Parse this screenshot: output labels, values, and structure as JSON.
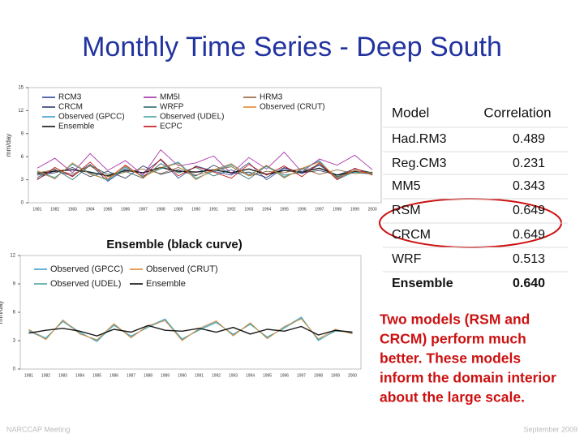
{
  "title": "Monthly Time Series - Deep South",
  "chart_data": [
    {
      "type": "line",
      "ylabel": "mm/day",
      "categories": [
        "1981",
        "1982",
        "1983",
        "1984",
        "1985",
        "1986",
        "1987",
        "1988",
        "1989",
        "1990",
        "1991",
        "1992",
        "1993",
        "1994",
        "1995",
        "1996",
        "1997",
        "1998",
        "1999",
        "2000"
      ],
      "ylim": [
        0,
        15
      ],
      "yticks": [
        0,
        3,
        6,
        9,
        12,
        15
      ],
      "series": [
        {
          "name": "RCM3",
          "color": "#1f3a93",
          "values": [
            3.1,
            4.2,
            3.5,
            5.0,
            2.8,
            4.4,
            3.9,
            5.6,
            3.2,
            4.8,
            4.1,
            3.6,
            5.2,
            3.0,
            4.5,
            3.8,
            4.9,
            3.3,
            4.0,
            3.7
          ]
        },
        {
          "name": "CRCM",
          "color": "#203060",
          "values": [
            3.6,
            3.9,
            4.6,
            3.4,
            4.1,
            3.2,
            4.8,
            3.7,
            4.3,
            3.5,
            4.9,
            3.8,
            4.0,
            3.3,
            4.6,
            3.9,
            4.2,
            3.6,
            4.4,
            3.9
          ]
        },
        {
          "name": "Observed (GPCC)",
          "color": "#3399cc",
          "values": [
            4.0,
            3.2,
            5.1,
            3.9,
            2.9,
            4.7,
            3.4,
            4.5,
            5.3,
            3.1,
            4.2,
            5.0,
            3.6,
            4.8,
            3.3,
            4.4,
            5.5,
            3.0,
            4.1,
            3.8
          ]
        },
        {
          "name": "Ensemble",
          "color": "#000000",
          "values": [
            3.8,
            4.1,
            4.3,
            4.0,
            3.5,
            4.2,
            3.9,
            4.6,
            4.1,
            4.0,
            4.3,
            3.9,
            4.4,
            3.7,
            4.2,
            4.0,
            4.5,
            3.6,
            4.1,
            3.9
          ]
        },
        {
          "name": "MM5I",
          "color": "#a020a0",
          "values": [
            4.5,
            5.8,
            3.9,
            6.4,
            4.2,
            5.5,
            3.6,
            6.9,
            4.8,
            5.2,
            6.1,
            3.8,
            5.9,
            4.4,
            6.6,
            4.0,
            5.7,
            4.9,
            6.2,
            4.3
          ]
        },
        {
          "name": "WRFP",
          "color": "#206060",
          "values": [
            3.3,
            4.4,
            3.0,
            4.9,
            3.7,
            4.1,
            3.2,
            5.1,
            3.9,
            4.6,
            3.5,
            4.3,
            3.1,
            4.8,
            3.6,
            4.0,
            5.0,
            3.4,
            4.2,
            3.8
          ]
        },
        {
          "name": "Observed (UDEL)",
          "color": "#40a0a0",
          "values": [
            4.1,
            3.3,
            5.0,
            3.8,
            3.0,
            4.6,
            3.5,
            4.4,
            5.2,
            3.2,
            4.1,
            4.9,
            3.7,
            4.7,
            3.4,
            4.3,
            5.4,
            3.1,
            4.0,
            3.9
          ]
        },
        {
          "name": "ECPC",
          "color": "#c00000",
          "values": [
            3.0,
            4.6,
            3.4,
            5.3,
            3.1,
            4.9,
            3.3,
            5.7,
            3.5,
            4.7,
            4.0,
            3.2,
            5.0,
            3.6,
            4.8,
            3.4,
            5.2,
            3.0,
            4.5,
            3.6
          ]
        },
        {
          "name": "HRM3",
          "color": "#8b5a2b",
          "values": [
            3.9,
            4.3,
            3.7,
            4.8,
            3.4,
            4.0,
            4.4,
            3.8,
            4.6,
            3.6,
            4.2,
            4.7,
            3.5,
            4.1,
            3.9,
            4.5,
            3.7,
            4.3,
            3.8,
            4.0
          ]
        },
        {
          "name": "Observed (CRUT)",
          "color": "#e08020",
          "values": [
            4.2,
            3.1,
            5.2,
            3.7,
            3.1,
            4.8,
            3.3,
            4.6,
            5.1,
            3.0,
            4.3,
            5.1,
            3.5,
            4.9,
            3.2,
            4.5,
            5.3,
            3.2,
            4.2,
            3.7
          ]
        }
      ]
    },
    {
      "type": "line",
      "title": "Ensemble (black curve)",
      "ylabel": "mm/day",
      "categories": [
        "1981",
        "1982",
        "1983",
        "1984",
        "1985",
        "1986",
        "1987",
        "1988",
        "1989",
        "1990",
        "1991",
        "1992",
        "1993",
        "1994",
        "1995",
        "1996",
        "1997",
        "1998",
        "1999",
        "2000"
      ],
      "ylim": [
        0,
        12
      ],
      "yticks": [
        0,
        3,
        6,
        9,
        12
      ],
      "series": [
        {
          "name": "Observed (GPCC)",
          "color": "#3399cc",
          "values": [
            4.0,
            3.2,
            5.1,
            3.9,
            2.9,
            4.7,
            3.4,
            4.5,
            5.3,
            3.1,
            4.2,
            5.0,
            3.6,
            4.8,
            3.3,
            4.4,
            5.5,
            3.0,
            4.1,
            3.8
          ]
        },
        {
          "name": "Observed (UDEL)",
          "color": "#40a0a0",
          "values": [
            4.1,
            3.3,
            5.0,
            3.8,
            3.0,
            4.6,
            3.5,
            4.4,
            5.2,
            3.2,
            4.1,
            4.9,
            3.7,
            4.7,
            3.4,
            4.3,
            5.4,
            3.1,
            4.0,
            3.9
          ]
        },
        {
          "name": "Observed (CRUT)",
          "color": "#e08020",
          "values": [
            4.2,
            3.1,
            5.2,
            3.7,
            3.1,
            4.8,
            3.3,
            4.6,
            5.1,
            3.0,
            4.3,
            5.1,
            3.5,
            4.9,
            3.2,
            4.5,
            5.3,
            3.2,
            4.2,
            3.7
          ]
        },
        {
          "name": "Ensemble",
          "color": "#000000",
          "values": [
            3.8,
            4.1,
            4.3,
            4.0,
            3.5,
            4.2,
            3.9,
            4.6,
            4.1,
            4.0,
            4.3,
            3.9,
            4.4,
            3.7,
            4.2,
            4.0,
            4.5,
            3.6,
            4.1,
            3.9
          ]
        }
      ]
    }
  ],
  "table": {
    "header": [
      "Model",
      "Correlation"
    ],
    "rows": [
      [
        "Had.RM3",
        "0.489"
      ],
      [
        "Reg.CM3",
        "0.231"
      ],
      [
        "MM5",
        "0.343"
      ],
      [
        "RSM",
        "0.649"
      ],
      [
        "CRCM",
        "0.649"
      ],
      [
        "WRF",
        "0.513"
      ],
      [
        "Ensemble",
        "0.640"
      ]
    ]
  },
  "note": [
    "Two models (RSM and",
    "CRCM) perform much",
    "better.  These models",
    "inform the domain interior",
    "about the large scale."
  ],
  "footer": {
    "left": "NARCCAP Meeting",
    "right": "September 2009"
  }
}
